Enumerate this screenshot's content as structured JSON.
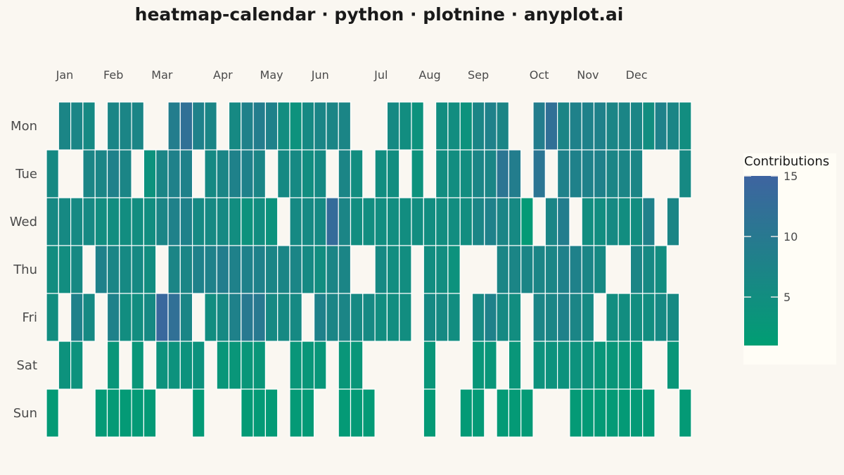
{
  "title": "heatmap-calendar · python · plotnine · anyplot.ai",
  "chart_data": {
    "type": "heatmap",
    "title": "heatmap-calendar · python · plotnine · anyplot.ai",
    "months": [
      "Jan",
      "Feb",
      "Mar",
      "Apr",
      "May",
      "Jun",
      "Jul",
      "Aug",
      "Sep",
      "Oct",
      "Nov",
      "Dec"
    ],
    "month_weeks": [
      1,
      5,
      9,
      14,
      18,
      22,
      27,
      31,
      35,
      40,
      44,
      48
    ],
    "days": [
      "Mon",
      "Tue",
      "Wed",
      "Thu",
      "Fri",
      "Sat",
      "Sun"
    ],
    "weeks": 53,
    "colors": {
      "low": "#009E73",
      "high": "#3E64A0",
      "empty": "#FAF7F1",
      "legend_bg": "#FFFDF6"
    },
    "legend": {
      "title": "Contributions",
      "ticks": [
        5,
        10,
        15
      ],
      "min": 1,
      "max": 15
    },
    "values": [
      [
        0,
        7,
        7,
        6,
        0,
        7,
        7,
        7,
        0,
        0,
        9,
        12,
        8,
        7,
        0,
        6,
        8,
        9,
        8,
        5,
        4,
        6,
        7,
        7,
        7,
        0,
        0,
        0,
        6,
        5,
        4,
        0,
        5,
        5,
        4,
        7,
        8,
        7,
        0,
        0,
        9,
        12,
        7,
        8,
        8,
        8,
        7,
        7,
        7,
        5,
        8,
        7,
        5
      ],
      [
        6,
        0,
        0,
        7,
        7,
        8,
        7,
        0,
        4,
        7,
        8,
        8,
        0,
        6,
        7,
        8,
        8,
        7,
        0,
        6,
        6,
        5,
        6,
        0,
        7,
        5,
        0,
        5,
        5,
        0,
        4,
        0,
        5,
        5,
        5,
        7,
        7,
        11,
        9,
        0,
        11,
        0,
        8,
        8,
        8,
        8,
        7,
        7,
        7,
        0,
        0,
        0,
        6
      ],
      [
        6,
        6,
        6,
        6,
        5,
        5,
        5,
        5,
        5,
        7,
        8,
        8,
        6,
        6,
        6,
        5,
        4,
        5,
        4,
        0,
        6,
        6,
        6,
        13,
        7,
        5,
        5,
        5,
        5,
        5,
        5,
        5,
        5,
        5,
        5,
        7,
        8,
        7,
        6,
        2,
        0,
        7,
        9,
        0,
        5,
        5,
        6,
        5,
        5,
        8,
        0,
        7,
        0
      ],
      [
        5,
        5,
        6,
        0,
        8,
        7,
        6,
        6,
        5,
        0,
        7,
        7,
        8,
        8,
        9,
        8,
        8,
        8,
        7,
        7,
        7,
        6,
        5,
        7,
        7,
        0,
        0,
        6,
        5,
        5,
        0,
        5,
        5,
        4,
        0,
        0,
        0,
        7,
        7,
        7,
        7,
        7,
        8,
        8,
        7,
        6,
        0,
        0,
        7,
        6,
        5,
        0,
        0
      ],
      [
        5,
        0,
        8,
        6,
        0,
        8,
        5,
        5,
        6,
        14,
        12,
        7,
        0,
        5,
        6,
        8,
        10,
        10,
        6,
        6,
        6,
        0,
        8,
        7,
        7,
        6,
        6,
        5,
        5,
        5,
        0,
        6,
        6,
        5,
        0,
        6,
        8,
        6,
        5,
        0,
        7,
        7,
        8,
        7,
        6,
        0,
        5,
        5,
        5,
        5,
        6,
        6,
        0
      ],
      [
        0,
        4,
        4,
        0,
        0,
        3,
        0,
        3,
        0,
        4,
        4,
        4,
        4,
        0,
        3,
        3,
        3,
        3,
        0,
        0,
        3,
        3,
        3,
        0,
        3,
        3,
        0,
        0,
        0,
        0,
        0,
        3,
        0,
        0,
        0,
        3,
        3,
        0,
        3,
        0,
        4,
        4,
        4,
        4,
        4,
        3,
        3,
        3,
        3,
        0,
        0,
        3,
        0
      ],
      [
        2,
        0,
        0,
        0,
        2,
        2,
        2,
        2,
        2,
        0,
        0,
        0,
        2,
        0,
        0,
        0,
        2,
        2,
        2,
        0,
        2,
        2,
        0,
        0,
        2,
        2,
        2,
        0,
        0,
        0,
        0,
        2,
        0,
        0,
        2,
        2,
        0,
        2,
        2,
        2,
        0,
        0,
        0,
        2,
        2,
        2,
        2,
        2,
        2,
        2,
        0,
        0,
        2
      ]
    ]
  }
}
